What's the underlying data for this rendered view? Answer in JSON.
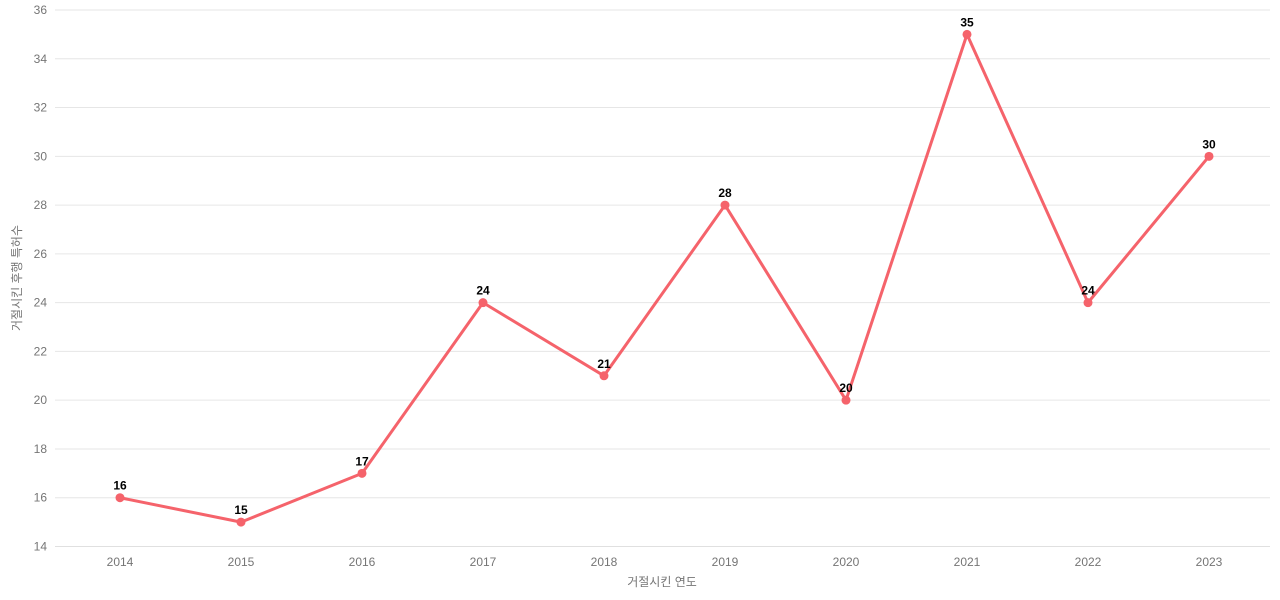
{
  "chart_data": {
    "type": "line",
    "categories": [
      "2014",
      "2015",
      "2016",
      "2017",
      "2018",
      "2019",
      "2020",
      "2021",
      "2022",
      "2023"
    ],
    "values": [
      16,
      15,
      17,
      24,
      21,
      28,
      20,
      35,
      24,
      30
    ],
    "title": "",
    "xlabel": "거절시킨 연도",
    "ylabel": "거절시킨 후행 특허수",
    "ylim": [
      14,
      36
    ],
    "ytick_step": 2,
    "grid": true,
    "legend": false,
    "point_labels_visible": true
  },
  "colors": {
    "line": "#f5636b",
    "point": "#f5636b",
    "gridline": "#e6e6e6",
    "axis_line": "#e0e0e0",
    "tick_text": "#757575",
    "value_label_text": "#000000",
    "background": "#ffffff"
  }
}
